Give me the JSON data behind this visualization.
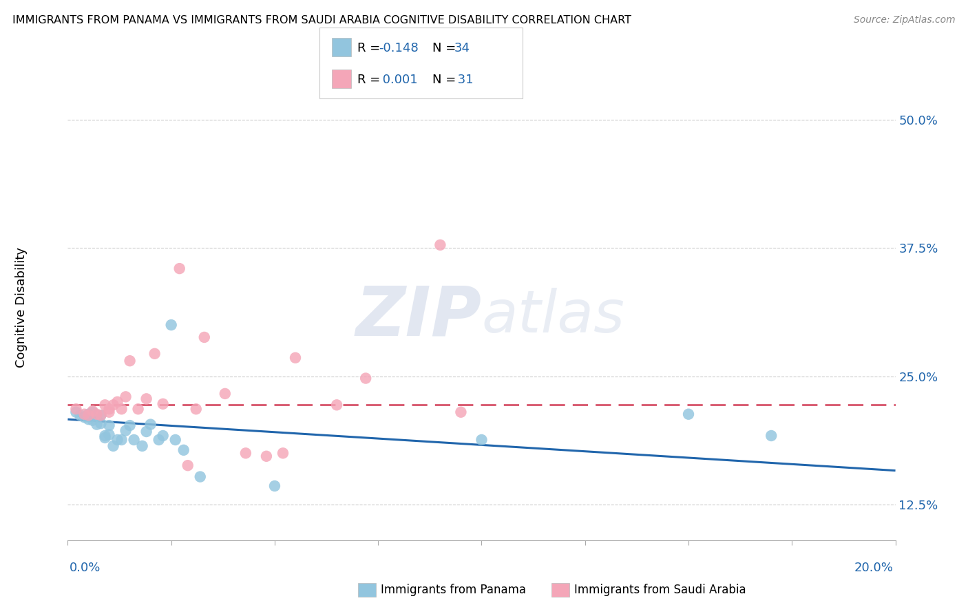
{
  "title": "IMMIGRANTS FROM PANAMA VS IMMIGRANTS FROM SAUDI ARABIA COGNITIVE DISABILITY CORRELATION CHART",
  "source": "Source: ZipAtlas.com",
  "ylabel": "Cognitive Disability",
  "y_ticks": [
    0.125,
    0.25,
    0.375,
    0.5
  ],
  "y_tick_labels": [
    "12.5%",
    "25.0%",
    "37.5%",
    "50.0%"
  ],
  "xlim": [
    0.0,
    0.2
  ],
  "ylim": [
    0.09,
    0.545
  ],
  "color_panama": "#92C5DE",
  "color_saudi": "#F4A6B8",
  "color_panama_line": "#2166AC",
  "color_saudi_line": "#D6546A",
  "watermark_zip": "ZIP",
  "watermark_atlas": "atlas",
  "panama_x": [
    0.002,
    0.003,
    0.004,
    0.005,
    0.005,
    0.006,
    0.006,
    0.007,
    0.007,
    0.008,
    0.008,
    0.009,
    0.009,
    0.01,
    0.01,
    0.011,
    0.012,
    0.013,
    0.014,
    0.015,
    0.016,
    0.018,
    0.019,
    0.02,
    0.022,
    0.023,
    0.025,
    0.026,
    0.028,
    0.032,
    0.05,
    0.1,
    0.15,
    0.17
  ],
  "panama_y": [
    0.215,
    0.212,
    0.21,
    0.213,
    0.208,
    0.215,
    0.207,
    0.212,
    0.203,
    0.204,
    0.212,
    0.19,
    0.192,
    0.202,
    0.193,
    0.182,
    0.188,
    0.188,
    0.197,
    0.202,
    0.188,
    0.182,
    0.196,
    0.203,
    0.188,
    0.192,
    0.3,
    0.188,
    0.178,
    0.152,
    0.143,
    0.188,
    0.213,
    0.192
  ],
  "saudi_x": [
    0.002,
    0.004,
    0.005,
    0.006,
    0.007,
    0.008,
    0.009,
    0.01,
    0.01,
    0.011,
    0.012,
    0.013,
    0.014,
    0.015,
    0.017,
    0.019,
    0.021,
    0.023,
    0.027,
    0.029,
    0.031,
    0.033,
    0.038,
    0.043,
    0.048,
    0.052,
    0.055,
    0.065,
    0.072,
    0.09,
    0.095
  ],
  "saudi_y": [
    0.218,
    0.213,
    0.212,
    0.216,
    0.213,
    0.212,
    0.222,
    0.218,
    0.215,
    0.222,
    0.225,
    0.218,
    0.23,
    0.265,
    0.218,
    0.228,
    0.272,
    0.223,
    0.355,
    0.163,
    0.218,
    0.288,
    0.233,
    0.175,
    0.172,
    0.175,
    0.268,
    0.222,
    0.248,
    0.378,
    0.215
  ],
  "panama_trend_x": [
    0.0,
    0.2
  ],
  "panama_trend_y": [
    0.208,
    0.158
  ],
  "saudi_trend_x": [
    0.0,
    0.2
  ],
  "saudi_trend_y": [
    0.222,
    0.222
  ]
}
